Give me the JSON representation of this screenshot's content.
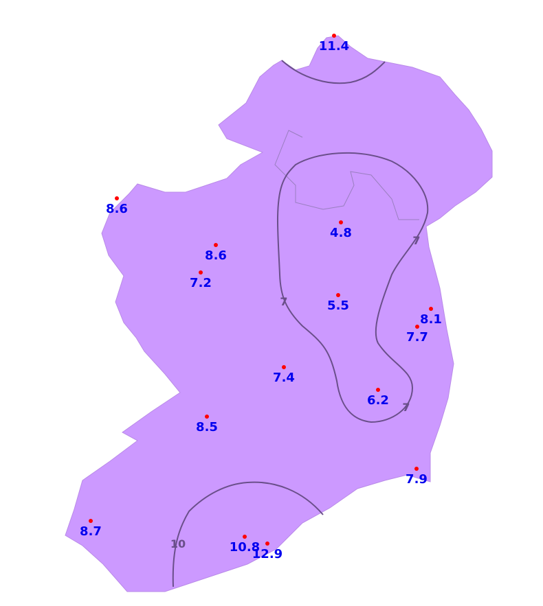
{
  "colors": {
    "land": "#cc99ff",
    "contour": "#6a4f8a",
    "station_dot": "#ff0000",
    "station_label": "#0000ee"
  },
  "stations": [
    {
      "value": "11.4"
    },
    {
      "value": "8.6"
    },
    {
      "value": "4.8"
    },
    {
      "value": "8.6"
    },
    {
      "value": "7.2"
    },
    {
      "value": "5.5"
    },
    {
      "value": "8.1"
    },
    {
      "value": "7.7"
    },
    {
      "value": "7.4"
    },
    {
      "value": "6.2"
    },
    {
      "value": "8.5"
    },
    {
      "value": "7.9"
    },
    {
      "value": "8.7"
    },
    {
      "value": "10.8"
    },
    {
      "value": "12.9"
    }
  ],
  "contour_labels": [
    "7",
    "7",
    "7",
    "10"
  ]
}
